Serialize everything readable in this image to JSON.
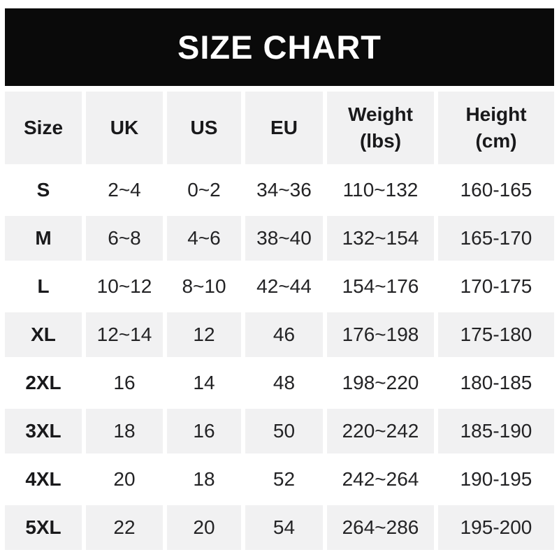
{
  "banner": {
    "title": "SIZE CHART"
  },
  "colors": {
    "banner_bg": "#0a0a0a",
    "banner_text": "#ffffff",
    "row_shade_bg": "#f1f1f2",
    "row_plain_bg": "#ffffff",
    "text": "#232325"
  },
  "chart_data": {
    "type": "table",
    "title": "SIZE CHART",
    "columns": [
      "Size",
      "UK",
      "US",
      "EU",
      "Weight\n(lbs)",
      "Height\n(cm)"
    ],
    "rows": [
      [
        "S",
        "2~4",
        "0~2",
        "34~36",
        "110~132",
        "160-165"
      ],
      [
        "M",
        "6~8",
        "4~6",
        "38~40",
        "132~154",
        "165-170"
      ],
      [
        "L",
        "10~12",
        "8~10",
        "42~44",
        "154~176",
        "170-175"
      ],
      [
        "XL",
        "12~14",
        "12",
        "46",
        "176~198",
        "175-180"
      ],
      [
        "2XL",
        "16",
        "14",
        "48",
        "198~220",
        "180-185"
      ],
      [
        "3XL",
        "18",
        "16",
        "50",
        "220~242",
        "185-190"
      ],
      [
        "4XL",
        "20",
        "18",
        "52",
        "242~264",
        "190-195"
      ],
      [
        "5XL",
        "22",
        "20",
        "54",
        "264~286",
        "195-200"
      ]
    ],
    "layout_hints": {
      "header_row_shaded": true,
      "data_row_shading": "alternating starting with unshaded (S)",
      "range_separator_most_columns": "~",
      "range_separator_height_column": "-"
    }
  }
}
